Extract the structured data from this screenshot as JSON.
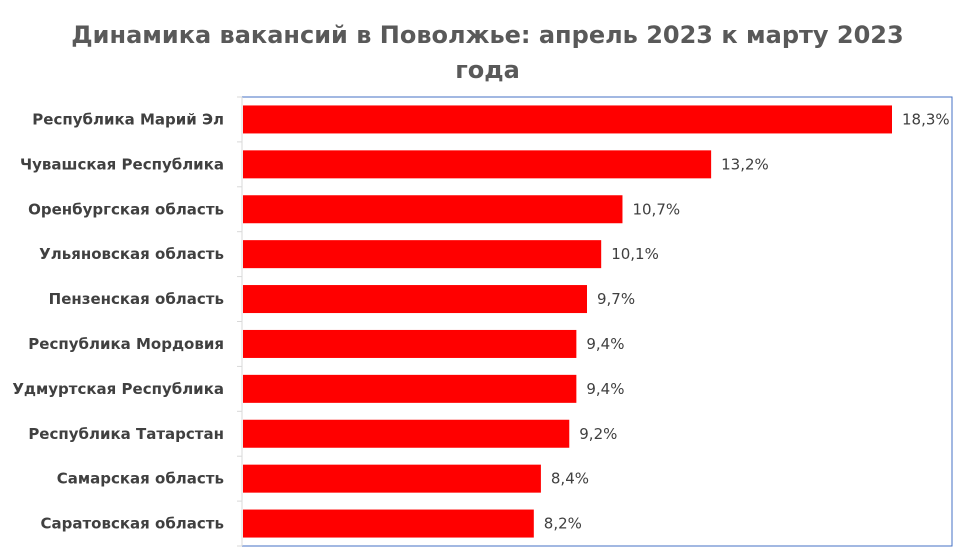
{
  "title_lines": [
    "Динамика вакансий в Поволжье: апрель 2023 к марту 2023",
    "года"
  ],
  "chart_data": {
    "type": "bar",
    "orientation": "horizontal",
    "title": "Динамика вакансий в Поволжье: апрель 2023 к марту 2023 года",
    "xlabel": "",
    "ylabel": "",
    "categories": [
      "Республика Марий Эл",
      "Чувашская Республика",
      "Оренбургская область",
      "Ульяновская область",
      "Пензенская область",
      "Республика Мордовия",
      "Удмуртская Республика",
      "Республика Татарстан",
      "Самарская область",
      "Саратовская область"
    ],
    "values": [
      18.3,
      13.2,
      10.7,
      10.1,
      9.7,
      9.4,
      9.4,
      9.2,
      8.4,
      8.2
    ],
    "value_labels": [
      "18,3%",
      "13,2%",
      "10,7%",
      "10,1%",
      "9,7%",
      "9,4%",
      "9,4%",
      "9,2%",
      "8,4%",
      "8,2%"
    ],
    "xlim": [
      0,
      20
    ],
    "grid": false,
    "legend": "none",
    "bar_color": "#ff0000",
    "axis_color": "#d9d9d9",
    "frame_color": "#4472c4"
  }
}
